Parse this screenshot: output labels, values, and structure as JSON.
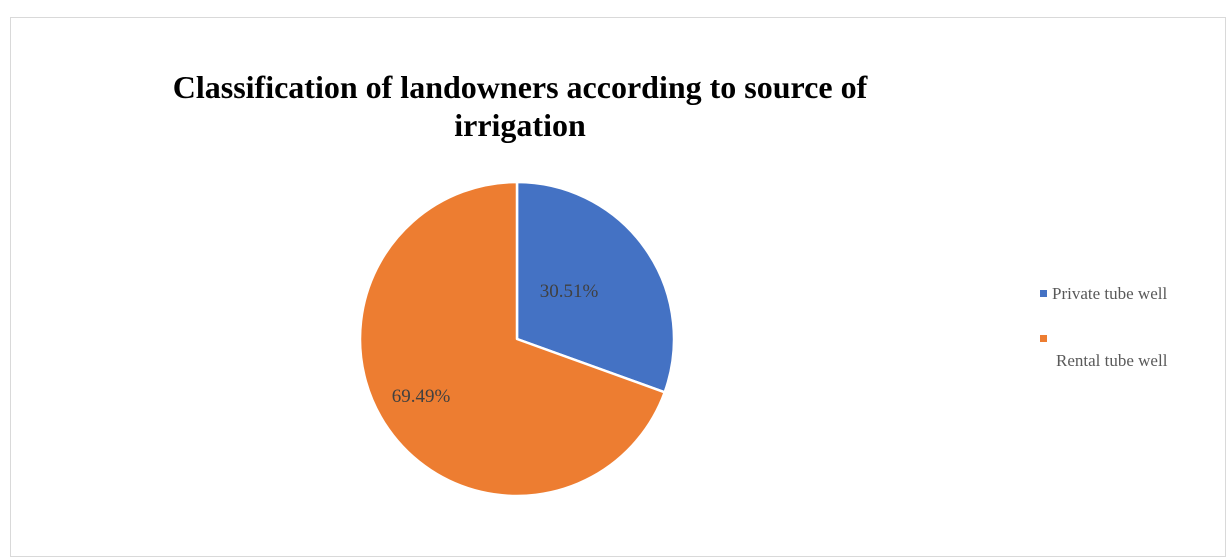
{
  "chart_data": {
    "type": "pie",
    "title": "Classification of landowners according to source of irrigation",
    "slices": [
      {
        "name": "Private tube well",
        "value": 30.51,
        "label": "30.51%",
        "color": "#4472C4"
      },
      {
        "name": "Rental tube well",
        "value": 69.49,
        "label": "69.49%",
        "color": "#ED7D31"
      }
    ],
    "legend_position": "right"
  }
}
